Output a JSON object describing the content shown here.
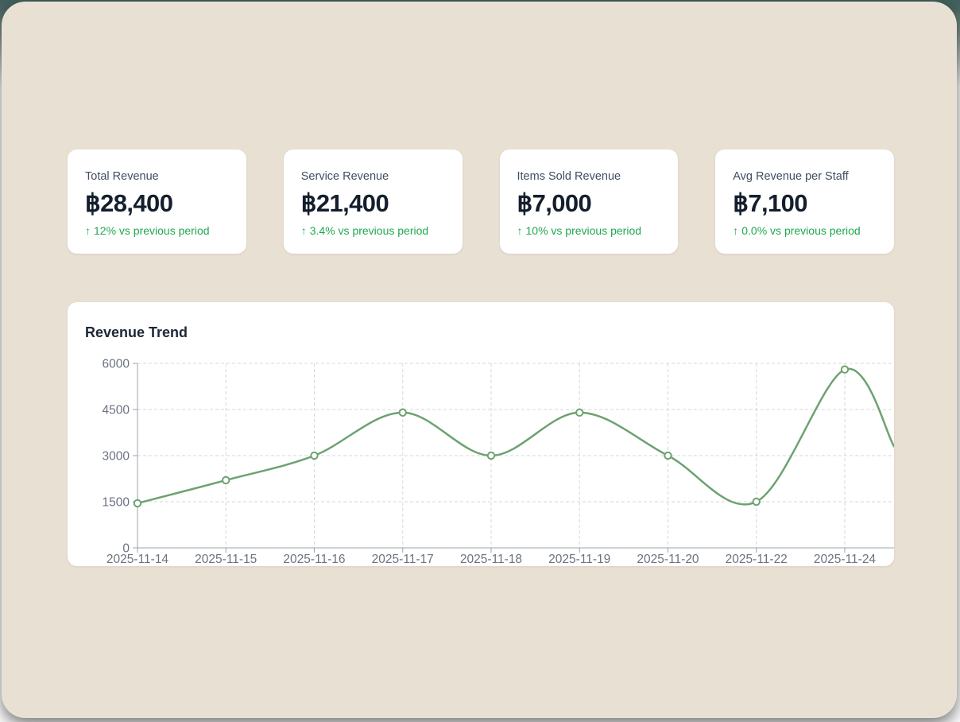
{
  "colors": {
    "page_background": "#e8e1d3",
    "backdrop_top": "#41605d",
    "card_background": "#ffffff",
    "stat_label": "#414e60",
    "stat_value": "#141f2d",
    "delta_green": "#1fa84f",
    "line_green": "#6da271",
    "axis_gray": "#9ca3af",
    "grid_gray": "#d7d7db",
    "tick_text_gray": "#6b7280"
  },
  "stat_cards": [
    {
      "label": "Total Revenue",
      "value": "฿28,400",
      "delta": {
        "arrow": "↑",
        "text": "12% vs previous period"
      }
    },
    {
      "label": "Service Revenue",
      "value": "฿21,400",
      "delta": {
        "arrow": "↑",
        "text": "3.4% vs previous period"
      }
    },
    {
      "label": "Items Sold Revenue",
      "value": "฿7,000",
      "delta": {
        "arrow": "↑",
        "text": "10% vs previous period"
      }
    },
    {
      "label": "Avg Revenue per Staff",
      "value": "฿7,100",
      "delta": {
        "arrow": "↑",
        "text": "0.0% vs previous period"
      }
    }
  ],
  "chart_data": {
    "type": "line",
    "title": "Revenue Trend",
    "x": [
      "2025-11-14",
      "2025-11-15",
      "2025-11-16",
      "2025-11-17",
      "2025-11-18",
      "2025-11-19",
      "2025-11-20",
      "2025-11-22",
      "2025-11-24"
    ],
    "values": [
      1450,
      2200,
      3000,
      4400,
      3000,
      4400,
      3000,
      1500,
      5800
    ],
    "clipped_end_value": 3300,
    "y_ticks": [
      0,
      1500,
      3000,
      4500,
      6000
    ],
    "ylim": [
      0,
      6000
    ],
    "xlabel": "",
    "ylabel": "",
    "grid": "dashed-horizontal-and-vertical",
    "legend": "none",
    "smooth": true,
    "marker": "open-circle",
    "line_color": "#6da271",
    "note": "curve continues past last labeled point and is clipped at right edge of card"
  }
}
